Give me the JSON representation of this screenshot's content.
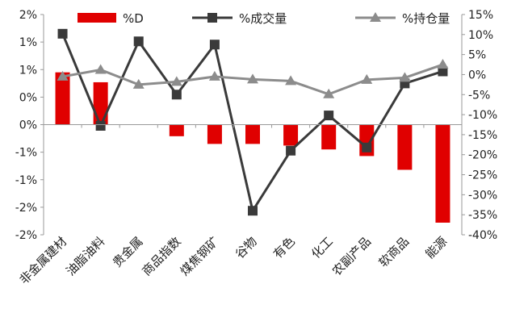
{
  "chart_data": {
    "type": "bar+line",
    "categories": [
      "非金属建材",
      "油脂油料",
      "贵金属",
      "商品指数",
      "煤焦钢矿",
      "谷物",
      "有色",
      "化工",
      "农副产品",
      "软商品",
      "能源"
    ],
    "series": [
      {
        "name": "%D",
        "type": "bar",
        "axis": "left",
        "color": "#e00000",
        "values": [
          0.95,
          0.77,
          0.0,
          -0.21,
          -0.35,
          -0.35,
          -0.38,
          -0.45,
          -0.57,
          -0.82,
          -1.78
        ]
      },
      {
        "name": "%成交量",
        "type": "line",
        "axis": "right",
        "color": "#3a3a3a",
        "marker": "square",
        "values": [
          10.2,
          -12.8,
          8.3,
          -5.0,
          7.5,
          -34.0,
          -19.0,
          -10.2,
          -18.2,
          -2.2,
          0.8
        ]
      },
      {
        "name": "%持仓量",
        "type": "line",
        "axis": "right",
        "color": "#8c8c8c",
        "marker": "triangle",
        "values": [
          -0.5,
          1.2,
          -2.5,
          -1.8,
          -0.5,
          -1.2,
          -1.6,
          -4.9,
          -1.3,
          -0.8,
          2.5
        ]
      }
    ],
    "y_left": {
      "ylim": [
        -2,
        2
      ],
      "ticks": [
        2,
        1.5,
        1,
        0.5,
        0,
        -0.5,
        -1,
        -1.5,
        -2
      ],
      "tick_labels": [
        "2%",
        "1%",
        "1%",
        "0%",
        "0%",
        "-1%",
        "-1%",
        "-2%",
        "-2%"
      ]
    },
    "y_right": {
      "ylim": [
        -40,
        15
      ],
      "ticks": [
        15,
        10,
        5,
        0,
        -5,
        -10,
        -15,
        -20,
        -25,
        -30,
        -35,
        -40
      ],
      "tick_labels": [
        "15%",
        "10%",
        "5%",
        "0%",
        "-5%",
        "-10%",
        "-15%",
        "-20%",
        "-25%",
        "-30%",
        "-35%",
        "-40%"
      ]
    },
    "legend": {
      "placement": "top",
      "items": [
        {
          "label": "%D",
          "kind": "bar",
          "color": "#e00000"
        },
        {
          "label": "%成交量",
          "kind": "line-square",
          "color": "#3a3a3a"
        },
        {
          "label": "%持仓量",
          "kind": "line-triangle",
          "color": "#8c8c8c"
        }
      ]
    },
    "grid": false
  }
}
